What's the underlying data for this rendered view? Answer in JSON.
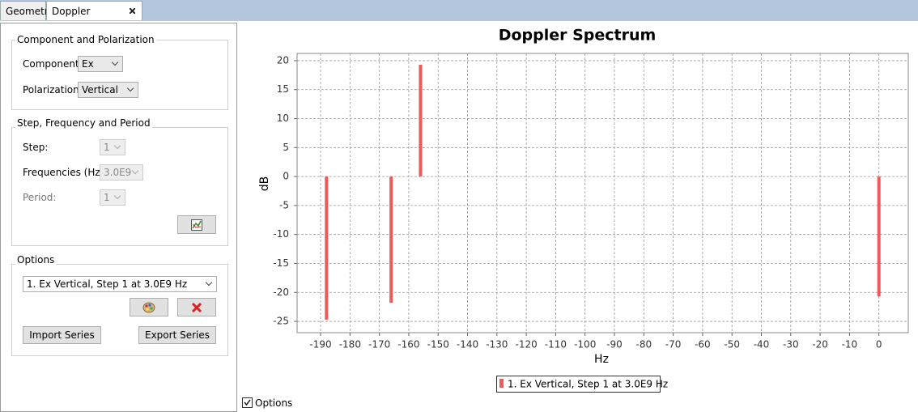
{
  "tabs": [
    "Geometry",
    "Doppler Spectrum"
  ],
  "active_tab": 1,
  "component_group": {
    "title": "Component and Polarization",
    "fields": [
      {
        "label": "Component:",
        "value": "Ex"
      },
      {
        "label": "Polarization:",
        "value": "Vertical"
      }
    ]
  },
  "step_group": {
    "title": "Step, Frequency and Period",
    "fields": [
      {
        "label": "Step:",
        "value": "1"
      },
      {
        "label": "Frequencies (Hz):",
        "value": "3.0E9"
      },
      {
        "label": "Period:",
        "value": "1"
      }
    ]
  },
  "options_group": {
    "title": "Options",
    "series_select": "1. Ex Vertical, Step 1 at 3.0E9 Hz",
    "buttons": [
      "Import Series",
      "Export Series"
    ]
  },
  "options_checkbox": {
    "label": "Options",
    "checked": true
  },
  "chart_data": {
    "type": "bar",
    "title": "Doppler Spectrum",
    "x_label": "Hz",
    "y_label": "dB",
    "x": [
      -188,
      -166,
      -156,
      0
    ],
    "series": [
      {
        "name": "1. Ex Vertical, Step 1 at 3.0E9 Hz",
        "color": "#ef5b5b",
        "values": [
          -24.7,
          -21.8,
          19.3,
          -20.7
        ]
      }
    ],
    "xlim": [
      -198,
      10
    ],
    "xticks": [
      -190,
      -180,
      -170,
      -160,
      -150,
      -140,
      -130,
      -120,
      -110,
      -100,
      -90,
      -80,
      -70,
      -60,
      -50,
      -40,
      -30,
      -20,
      -10,
      0
    ],
    "ylim": [
      -26.95,
      21.25
    ],
    "yticks": [
      -25,
      -20,
      -15,
      -10,
      -5,
      0,
      5,
      10,
      15,
      20
    ],
    "grid": true
  }
}
